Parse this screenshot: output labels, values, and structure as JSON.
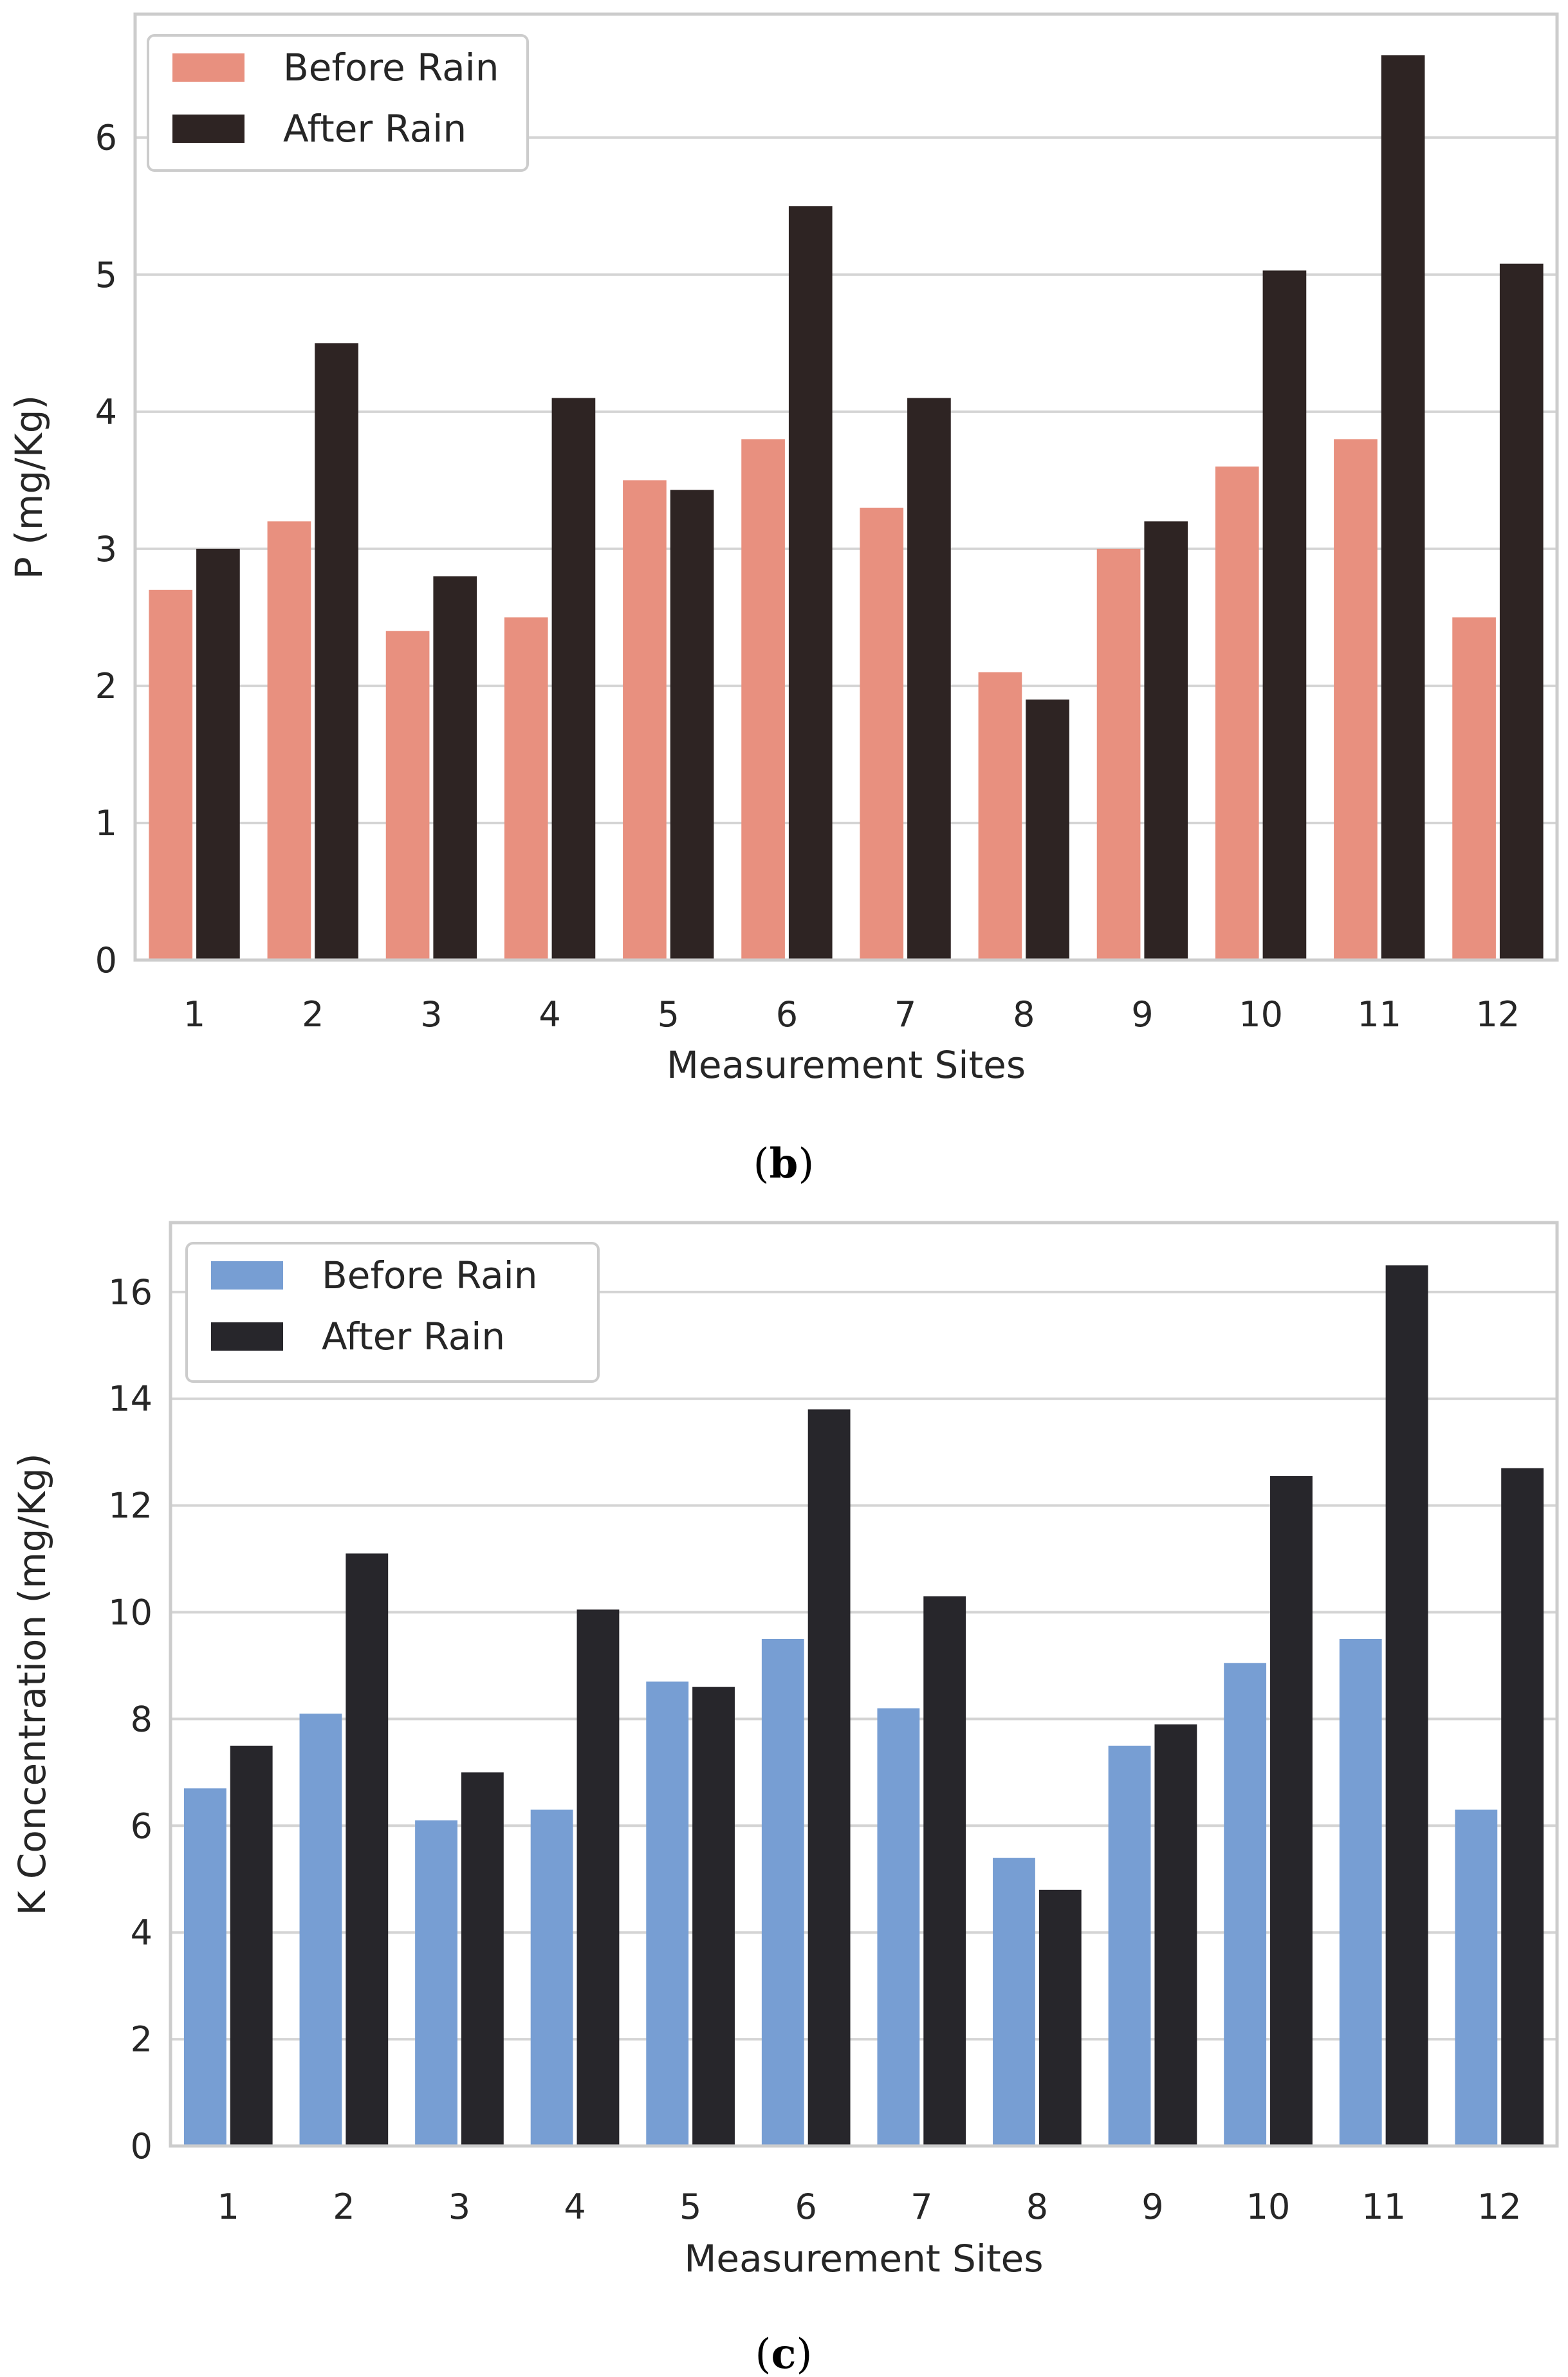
{
  "chart_data": [
    {
      "type": "bar",
      "caption": {
        "open": "(",
        "letter": "b",
        "close": ")"
      },
      "xlabel": "Measurement Sites",
      "ylabel": "P (mg/Kg)",
      "categories": [
        "1",
        "2",
        "3",
        "4",
        "5",
        "6",
        "7",
        "8",
        "9",
        "10",
        "11",
        "12"
      ],
      "ylim": [
        0,
        6.9
      ],
      "yticks": [
        0,
        1,
        2,
        3,
        4,
        5,
        6
      ],
      "grid": true,
      "legend_position": "top-left",
      "series": [
        {
          "name": "Before Rain",
          "color": "#e8907f",
          "values": [
            2.7,
            3.2,
            2.4,
            2.5,
            3.5,
            3.8,
            3.3,
            2.1,
            3.0,
            3.6,
            3.8,
            2.5
          ]
        },
        {
          "name": "After Rain",
          "color": "#2e2423",
          "values": [
            3.0,
            4.5,
            2.8,
            4.1,
            3.43,
            5.5,
            4.1,
            1.9,
            3.2,
            5.03,
            6.6,
            5.08
          ]
        }
      ]
    },
    {
      "type": "bar",
      "caption": {
        "open": "(",
        "letter": "c",
        "close": ")"
      },
      "xlabel": "Measurement Sites",
      "ylabel": "K Concentration (mg/Kg)",
      "categories": [
        "1",
        "2",
        "3",
        "4",
        "5",
        "6",
        "7",
        "8",
        "9",
        "10",
        "11",
        "12"
      ],
      "ylim": [
        0,
        17.3
      ],
      "yticks": [
        0,
        2,
        4,
        6,
        8,
        10,
        12,
        14,
        16
      ],
      "grid": true,
      "legend_position": "top-left",
      "series": [
        {
          "name": "Before Rain",
          "color": "#779ed3",
          "values": [
            6.7,
            8.1,
            6.1,
            6.3,
            8.7,
            9.5,
            8.2,
            5.4,
            7.5,
            9.05,
            9.5,
            6.3
          ]
        },
        {
          "name": "After Rain",
          "color": "#27262b",
          "values": [
            7.5,
            11.1,
            7.0,
            10.05,
            8.6,
            13.8,
            10.3,
            4.8,
            7.9,
            12.55,
            16.5,
            12.7
          ]
        }
      ]
    }
  ]
}
